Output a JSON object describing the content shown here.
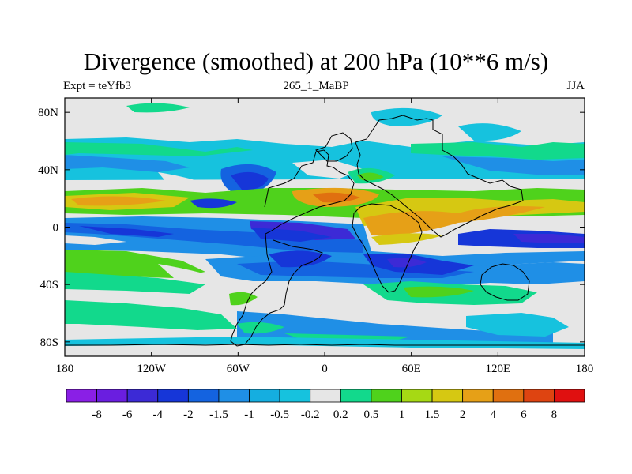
{
  "chart_data": {
    "type": "heatmap",
    "title": "Divergence (smoothed) at 200 hPa (10**6 m/s)",
    "subtitle_left": "Expt = teYfb3",
    "subtitle_center": "265_1_MaBP",
    "subtitle_right": "JJA",
    "xlabel": "",
    "ylabel": "",
    "xlim": [
      -180,
      180
    ],
    "ylim": [
      -90,
      90
    ],
    "x_ticks": [
      {
        "value": -180,
        "label": "180"
      },
      {
        "value": -120,
        "label": "120W"
      },
      {
        "value": -60,
        "label": "60W"
      },
      {
        "value": 0,
        "label": "0"
      },
      {
        "value": 60,
        "label": "60E"
      },
      {
        "value": 120,
        "label": "120E"
      },
      {
        "value": 180,
        "label": "180"
      }
    ],
    "y_ticks": [
      {
        "value": 80,
        "label": "80N"
      },
      {
        "value": 40,
        "label": "40N"
      },
      {
        "value": 0,
        "label": "0"
      },
      {
        "value": -40,
        "label": "40S"
      },
      {
        "value": -80,
        "label": "80S"
      }
    ],
    "colorbar": {
      "labels": [
        "-8",
        "-6",
        "-4",
        "-2",
        "-1.5",
        "-1",
        "-0.5",
        "-0.2",
        "0.2",
        "0.5",
        "1",
        "1.5",
        "2",
        "4",
        "6",
        "8"
      ],
      "colors": [
        "#8a1fe6",
        "#6a1ee0",
        "#3c2ad6",
        "#1636d8",
        "#1463e0",
        "#1f8fe6",
        "#15aee0",
        "#16c2de",
        "#e6e6e6",
        "#12d98c",
        "#4fd21c",
        "#a6d914",
        "#d6c812",
        "#e6a017",
        "#e07010",
        "#de4411",
        "#e01010"
      ]
    },
    "field_features": [
      {
        "kind": "positive band",
        "lat_range": [
          5,
          25
        ],
        "value_range": [
          1,
          4
        ]
      },
      {
        "kind": "negative band",
        "lat_range": [
          -25,
          0
        ],
        "value_range": [
          -2,
          -1
        ]
      },
      {
        "kind": "positive band",
        "lat_range": [
          -40,
          -30
        ],
        "value_range": [
          0.2,
          1
        ]
      },
      {
        "kind": "mixed band",
        "lat_range": [
          30,
          55
        ],
        "value_range": [
          -1.5,
          1
        ]
      }
    ]
  }
}
